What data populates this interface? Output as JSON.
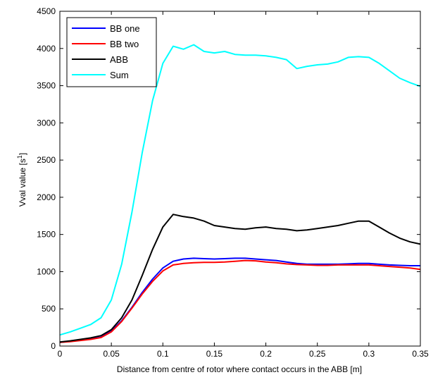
{
  "chart_data": {
    "type": "line",
    "title": "",
    "xlabel": "Distance from centre of rotor where contact occurs in the ABB [m]",
    "ylabel_main": "Vval value [s",
    "ylabel_sup": "1",
    "ylabel_close": "]",
    "xlim": [
      0,
      0.35
    ],
    "ylim": [
      0,
      4500
    ],
    "x_ticks": [
      0,
      0.05,
      0.1,
      0.15,
      0.2,
      0.25,
      0.3,
      0.35
    ],
    "x_tick_labels": [
      "0",
      "0.05",
      "0.1",
      "0.15",
      "0.2",
      "0.25",
      "0.3",
      "0.35"
    ],
    "y_ticks": [
      0,
      500,
      1000,
      1500,
      2000,
      2500,
      3000,
      3500,
      4000,
      4500
    ],
    "y_tick_labels": [
      "0",
      "500",
      "1000",
      "1500",
      "2000",
      "2500",
      "3000",
      "3500",
      "4000",
      "4500"
    ],
    "grid": false,
    "legend_position": "top-left",
    "x": [
      0,
      0.01,
      0.02,
      0.03,
      0.04,
      0.05,
      0.06,
      0.07,
      0.08,
      0.09,
      0.1,
      0.11,
      0.12,
      0.13,
      0.14,
      0.15,
      0.16,
      0.17,
      0.18,
      0.19,
      0.2,
      0.21,
      0.22,
      0.23,
      0.24,
      0.25,
      0.26,
      0.27,
      0.28,
      0.29,
      0.3,
      0.31,
      0.32,
      0.33,
      0.34,
      0.35
    ],
    "series": [
      {
        "name": "BB one",
        "color": "#0000ff",
        "values": [
          50,
          65,
          80,
          95,
          120,
          200,
          340,
          520,
          720,
          900,
          1050,
          1140,
          1170,
          1180,
          1175,
          1170,
          1175,
          1180,
          1180,
          1170,
          1160,
          1150,
          1130,
          1110,
          1100,
          1100,
          1100,
          1100,
          1105,
          1110,
          1110,
          1100,
          1090,
          1085,
          1080,
          1080
        ]
      },
      {
        "name": "BB two",
        "color": "#ff0000",
        "values": [
          50,
          60,
          75,
          90,
          115,
          190,
          330,
          510,
          700,
          870,
          1010,
          1090,
          1110,
          1120,
          1125,
          1125,
          1130,
          1140,
          1150,
          1145,
          1130,
          1120,
          1105,
          1095,
          1090,
          1085,
          1085,
          1090,
          1090,
          1090,
          1090,
          1080,
          1070,
          1060,
          1050,
          1030
        ]
      },
      {
        "name": "ABB",
        "color": "#000000",
        "values": [
          55,
          70,
          90,
          110,
          140,
          220,
          380,
          620,
          950,
          1300,
          1600,
          1770,
          1740,
          1720,
          1680,
          1620,
          1600,
          1580,
          1570,
          1590,
          1600,
          1580,
          1570,
          1550,
          1560,
          1580,
          1600,
          1620,
          1650,
          1680,
          1680,
          1600,
          1520,
          1450,
          1400,
          1370
        ]
      },
      {
        "name": "Sum",
        "color": "#00ffff",
        "values": [
          150,
          190,
          240,
          290,
          380,
          620,
          1100,
          1800,
          2600,
          3300,
          3800,
          4030,
          3990,
          4050,
          3960,
          3940,
          3960,
          3920,
          3910,
          3910,
          3900,
          3880,
          3850,
          3730,
          3760,
          3780,
          3790,
          3820,
          3880,
          3890,
          3880,
          3800,
          3700,
          3600,
          3540,
          3490
        ]
      }
    ]
  }
}
